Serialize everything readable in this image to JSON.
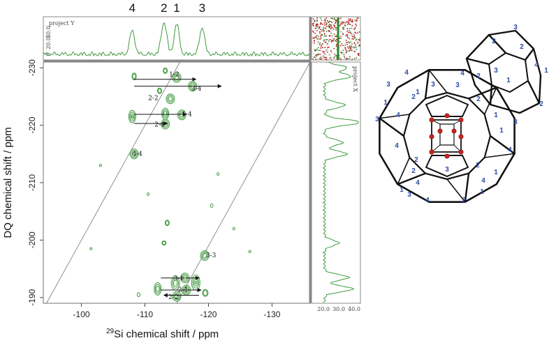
{
  "peak_labels": [
    "4",
    "2",
    "1",
    "3"
  ],
  "top_projection_label": "project Y",
  "top_projection_ticks": [
    "0",
    "20.0",
    "40.0"
  ],
  "right_projection_label": "project X",
  "right_projection_ticks": [
    "20.0",
    "30.0",
    "40.0"
  ],
  "colors": {
    "contour": "#3f9a3f",
    "axis": "#888888",
    "label_blue": "#2d4aa6",
    "atom_red": "#cc2222"
  },
  "chart_data": {
    "type": "contour",
    "xlabel_sup": "29",
    "xlabel_main": "Si chemical shift / ppm",
    "ylabel": "DQ chemical shift / ppm",
    "x_ticks": [
      -100,
      -110,
      -120,
      -130
    ],
    "x_tick_labels": [
      "-100",
      "-110",
      "-120",
      "-130"
    ],
    "y_ticks": [
      -230,
      -220,
      -210,
      -200,
      -190
    ],
    "y_tick_labels": [
      "-230",
      "-220",
      "-210",
      "-200",
      "-190"
    ],
    "xlim": [
      -94,
      -136
    ],
    "ylim": [
      -231,
      -189
    ],
    "peaks_1d": [
      {
        "label": "4",
        "x": -108.0
      },
      {
        "label": "2",
        "x": -113.0
      },
      {
        "label": "1",
        "x": -115.0
      },
      {
        "label": "3",
        "x": -119.0
      }
    ],
    "cross_peaks": [
      {
        "label": "1-2",
        "x": -115.0,
        "y": -228.3
      },
      {
        "label": "3-4",
        "x": -117.5,
        "y": -226.8
      },
      {
        "label": "2-2",
        "x": -114.0,
        "y": -224.6
      },
      {
        "label": "1-4",
        "x": -115.8,
        "y": -221.8
      },
      {
        "label": "2-4",
        "x": -113.2,
        "y": -220.2
      },
      {
        "label": "4-4",
        "x": -108.3,
        "y": -215.0
      },
      {
        "label": "3-3",
        "x": -119.4,
        "y": -197.3
      },
      {
        "label": "3-1",
        "x": -116.3,
        "y": -193.4
      },
      {
        "label": "2-1",
        "x": -116.5,
        "y": -191.3
      },
      {
        "label": "2-2",
        "x": -115.0,
        "y": -190.2
      }
    ]
  },
  "structure_labels": [
    "1",
    "2",
    "3",
    "4"
  ]
}
